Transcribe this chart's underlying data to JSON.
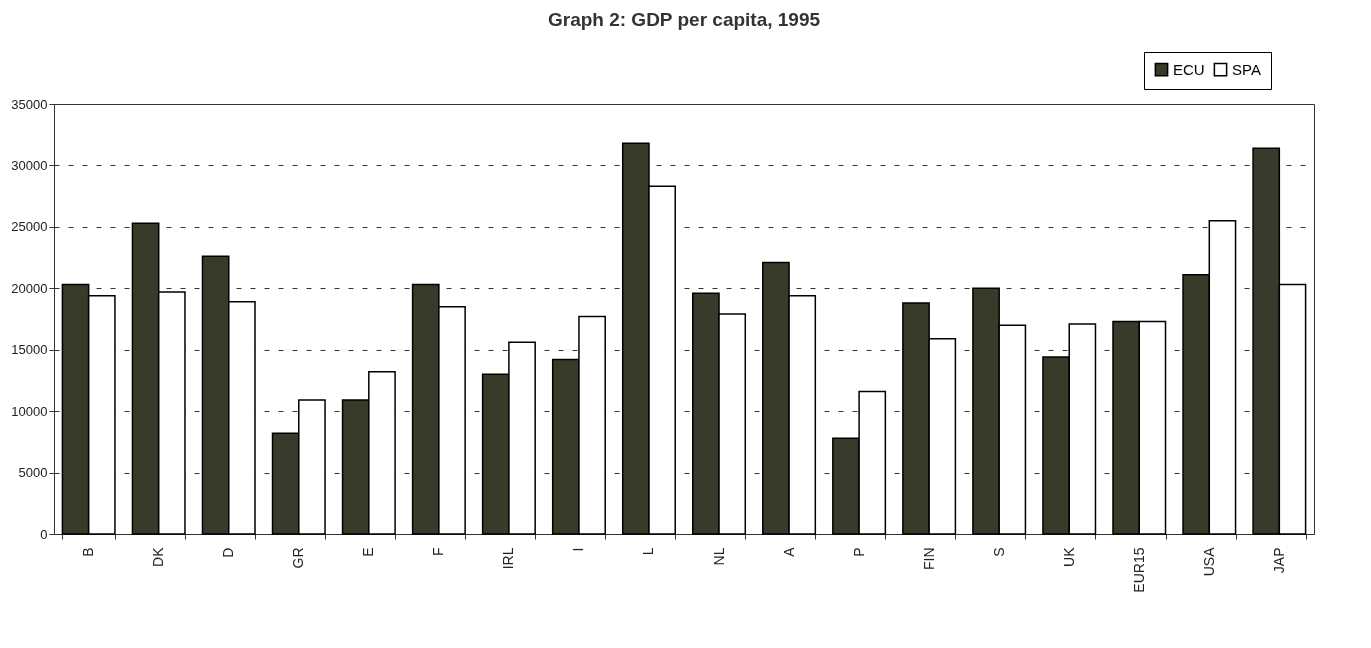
{
  "chart_data": {
    "type": "bar",
    "title": "Graph 2: GDP per capita, 1995",
    "categories": [
      "B",
      "DK",
      "D",
      "GR",
      "E",
      "F",
      "IRL",
      "I",
      "L",
      "NL",
      "A",
      "P",
      "FIN",
      "S",
      "UK",
      "EUR15",
      "USA",
      "JAP"
    ],
    "series": [
      {
        "name": "ECU",
        "color": "#3a3a2a",
        "values": [
          20300,
          25300,
          22600,
          8200,
          10900,
          20300,
          13000,
          14200,
          31800,
          19600,
          22100,
          7800,
          18800,
          20000,
          14400,
          17300,
          21100,
          31400
        ]
      },
      {
        "name": "SPA",
        "color": "#ffffff",
        "values": [
          19400,
          19700,
          18900,
          10900,
          13200,
          18500,
          15600,
          17700,
          28300,
          17900,
          19400,
          11600,
          15900,
          17000,
          17100,
          17300,
          25500,
          20300
        ]
      }
    ],
    "ylim": [
      0,
      35000
    ],
    "yticks": [
      0,
      5000,
      10000,
      15000,
      20000,
      25000,
      30000,
      35000
    ],
    "grid": "y",
    "legend": "top right"
  }
}
